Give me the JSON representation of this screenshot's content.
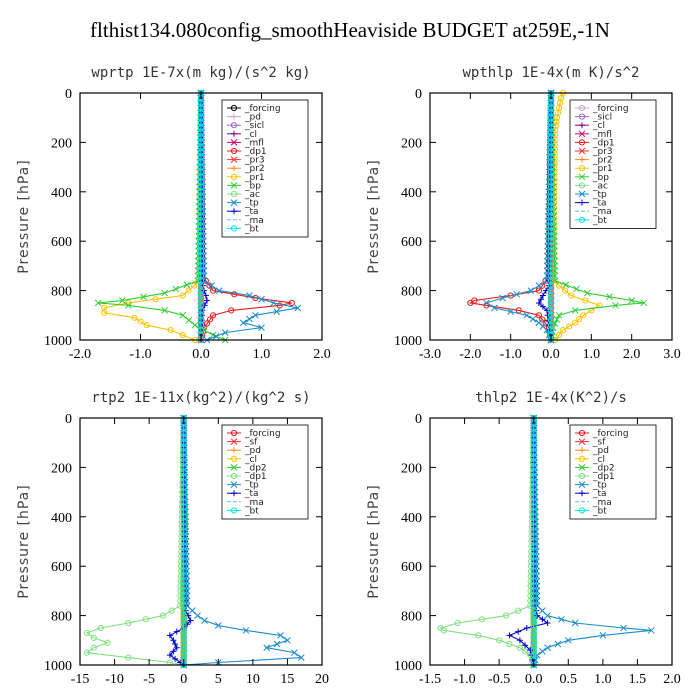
{
  "suptitle": "flthist134.080config_smoothHeaviside  BUDGET at259E,-1N",
  "chart_data": [
    {
      "type": "line",
      "title": "wprtp  1E-7x(m kg)/(s^2 kg)",
      "ylabel": "Pressure [hPa]",
      "xlim": [
        -2.0,
        2.0
      ],
      "ylim": [
        1000,
        0
      ],
      "xticks": [
        "-2.0",
        "-1.0",
        "0.0",
        "1.0",
        "2.0"
      ],
      "yticks": [
        "0",
        "200",
        "400",
        "600",
        "800",
        "1000"
      ],
      "series": [
        {
          "name": "_forcing",
          "color": "#000000",
          "marker": "o",
          "p": [
            0,
            500,
            800,
            1000
          ],
          "x": [
            0,
            0,
            0,
            0
          ]
        },
        {
          "name": "_pd",
          "color": "#c9a0dc",
          "marker": "+",
          "p": [
            0,
            1000
          ],
          "x": [
            0,
            0
          ]
        },
        {
          "name": "_sicl",
          "color": "#9966cc",
          "marker": "o",
          "p": [
            0,
            1000
          ],
          "x": [
            0,
            0
          ]
        },
        {
          "name": "_cl",
          "color": "#800080",
          "marker": "+",
          "p": [
            0,
            1000
          ],
          "x": [
            0,
            0
          ]
        },
        {
          "name": "_mfl",
          "color": "#cc0066",
          "marker": "x",
          "p": [
            0,
            1000
          ],
          "x": [
            0,
            0
          ]
        },
        {
          "name": "_dp1",
          "color": "#e81a1a",
          "marker": "o",
          "p": [
            0,
            740,
            800,
            830,
            850,
            860,
            880,
            900,
            950,
            1000
          ],
          "x": [
            0,
            0.02,
            0.2,
            0.9,
            1.5,
            1.3,
            0.5,
            0.2,
            0.05,
            0
          ]
        },
        {
          "name": "_pr3",
          "color": "#ff3333",
          "marker": "x",
          "p": [
            0,
            1000
          ],
          "x": [
            0,
            0
          ]
        },
        {
          "name": "_pr2",
          "color": "#ff8c1a",
          "marker": "+",
          "p": [
            0,
            1000
          ],
          "x": [
            0,
            0
          ]
        },
        {
          "name": "_pr1",
          "color": "#f5c400",
          "marker": "o",
          "p": [
            0,
            760,
            820,
            850,
            870,
            890,
            910,
            940,
            960,
            1000
          ],
          "x": [
            0,
            -0.02,
            -0.3,
            -1.2,
            -1.6,
            -1.6,
            -1.1,
            -0.9,
            -0.5,
            -0.1
          ]
        },
        {
          "name": "_bp",
          "color": "#33cc33",
          "marker": "x",
          "p": [
            0,
            760,
            810,
            840,
            850,
            860,
            880,
            900,
            940,
            980,
            1000
          ],
          "x": [
            0,
            -0.05,
            -0.6,
            -1.3,
            -1.7,
            -1.2,
            -0.6,
            -0.3,
            -0.1,
            0.2,
            0.4
          ]
        },
        {
          "name": "_ac",
          "color": "#80e080",
          "marker": "o",
          "p": [
            0,
            1000
          ],
          "x": [
            0,
            0
          ]
        },
        {
          "name": "_tp",
          "color": "#1a8ccc",
          "marker": "x",
          "p": [
            0,
            760,
            800,
            820,
            850,
            870,
            900,
            930,
            950,
            970,
            1000
          ],
          "x": [
            0,
            0.05,
            0.3,
            0.8,
            1.2,
            1.6,
            0.9,
            0.7,
            1.0,
            0.4,
            0.1
          ]
        },
        {
          "name": "_ta",
          "color": "#0000cc",
          "marker": "+",
          "p": [
            0,
            760,
            800,
            820,
            840,
            860,
            880,
            1000
          ],
          "x": [
            0,
            0.02,
            0.05,
            0.08,
            0.1,
            0.06,
            0.02,
            0
          ]
        },
        {
          "name": "_ma",
          "color": "#66b3ff",
          "marker": "none",
          "p": [
            0,
            1000
          ],
          "x": [
            0,
            0
          ]
        },
        {
          "name": "_bt",
          "color": "#00e5e5",
          "marker": "o",
          "p": [
            0,
            1000
          ],
          "x": [
            0,
            0
          ]
        }
      ]
    },
    {
      "type": "line",
      "title": "wpthlp  1E-4x(m K)/s^2",
      "ylabel": "Pressure [hPa]",
      "xlim": [
        -3.0,
        3.0
      ],
      "ylim": [
        1000,
        0
      ],
      "xticks": [
        "-3.0",
        "-2.0",
        "-1.0",
        "0.0",
        "1.0",
        "2.0",
        "3.0"
      ],
      "yticks": [
        "0",
        "200",
        "400",
        "600",
        "800",
        "1000"
      ],
      "series": [
        {
          "name": "_forcing",
          "color": "#c9a0dc",
          "marker": "o",
          "p": [
            0,
            1000
          ],
          "x": [
            0,
            0
          ]
        },
        {
          "name": "_sicl",
          "color": "#9966cc",
          "marker": "o",
          "p": [
            0,
            1000
          ],
          "x": [
            0,
            0
          ]
        },
        {
          "name": "_cl",
          "color": "#800080",
          "marker": "+",
          "p": [
            0,
            1000
          ],
          "x": [
            0,
            0
          ]
        },
        {
          "name": "_mfl",
          "color": "#cc0066",
          "marker": "x",
          "p": [
            0,
            1000
          ],
          "x": [
            0,
            0
          ]
        },
        {
          "name": "_dp1",
          "color": "#e81a1a",
          "marker": "o",
          "p": [
            0,
            740,
            800,
            820,
            840,
            850,
            860,
            880,
            900,
            950,
            1000
          ],
          "x": [
            0,
            -0.05,
            -0.3,
            -1.0,
            -1.9,
            -2.0,
            -1.6,
            -0.8,
            -0.3,
            -0.05,
            0
          ]
        },
        {
          "name": "_pr3",
          "color": "#ff3333",
          "marker": "x",
          "p": [
            0,
            1000
          ],
          "x": [
            0,
            0
          ]
        },
        {
          "name": "_pr2",
          "color": "#ff8c1a",
          "marker": "+",
          "p": [
            0,
            1000
          ],
          "x": [
            0,
            0
          ]
        },
        {
          "name": "_pr1",
          "color": "#f5c400",
          "marker": "o",
          "p": [
            0,
            20,
            60,
            100,
            150,
            760,
            820,
            860,
            900,
            930,
            960,
            1000
          ],
          "x": [
            0.3,
            0.25,
            0.2,
            0.15,
            0.1,
            0.05,
            0.5,
            1.2,
            0.8,
            0.6,
            0.3,
            0.1
          ]
        },
        {
          "name": "_bp",
          "color": "#33cc33",
          "marker": "x",
          "p": [
            0,
            760,
            810,
            840,
            850,
            860,
            880,
            900,
            950,
            1000
          ],
          "x": [
            0,
            0.1,
            0.9,
            2.0,
            2.3,
            1.6,
            0.6,
            0.2,
            0.05,
            0
          ]
        },
        {
          "name": "_ac",
          "color": "#80e080",
          "marker": "o",
          "p": [
            0,
            1000
          ],
          "x": [
            0,
            0
          ]
        },
        {
          "name": "_tp",
          "color": "#1a8ccc",
          "marker": "x",
          "p": [
            0,
            760,
            800,
            830,
            850,
            870,
            900,
            930,
            960,
            1000
          ],
          "x": [
            0,
            -0.1,
            -0.5,
            -1.2,
            -1.6,
            -1.4,
            -0.6,
            -0.3,
            -0.1,
            0
          ]
        },
        {
          "name": "_ta",
          "color": "#0000cc",
          "marker": "+",
          "p": [
            0,
            780,
            820,
            850,
            880,
            1000
          ],
          "x": [
            0,
            -0.05,
            -0.2,
            -0.3,
            -0.1,
            0
          ]
        },
        {
          "name": "_ma",
          "color": "#66b3ff",
          "marker": "none",
          "p": [
            0,
            1000
          ],
          "x": [
            0,
            0
          ]
        },
        {
          "name": "_bt",
          "color": "#00e5e5",
          "marker": "o",
          "p": [
            0,
            1000
          ],
          "x": [
            0,
            0
          ]
        }
      ]
    },
    {
      "type": "line",
      "title": "rtp2  1E-11x(kg^2)/(kg^2 s)",
      "ylabel": "Pressure [hPa]",
      "xlim": [
        -15,
        20
      ],
      "ylim": [
        1000,
        0
      ],
      "xticks": [
        "-15",
        "-10",
        "-5",
        "0",
        "5",
        "10",
        "15",
        "20"
      ],
      "yticks": [
        "0",
        "200",
        "400",
        "600",
        "800",
        "1000"
      ],
      "series": [
        {
          "name": "_forcing",
          "color": "#e81a1a",
          "marker": "o",
          "p": [
            0,
            1000
          ],
          "x": [
            0,
            0
          ]
        },
        {
          "name": "_sf",
          "color": "#ff3333",
          "marker": "x",
          "p": [
            0,
            1000
          ],
          "x": [
            0,
            0
          ]
        },
        {
          "name": "_pd",
          "color": "#ff8c1a",
          "marker": "+",
          "p": [
            0,
            1000
          ],
          "x": [
            0,
            0
          ]
        },
        {
          "name": "_cl",
          "color": "#f5c400",
          "marker": "o",
          "p": [
            0,
            1000
          ],
          "x": [
            0,
            0
          ]
        },
        {
          "name": "_dp2",
          "color": "#33cc33",
          "marker": "x",
          "p": [
            0,
            1000
          ],
          "x": [
            0,
            0
          ]
        },
        {
          "name": "_dp1",
          "color": "#80e080",
          "marker": "o",
          "p": [
            0,
            760,
            800,
            830,
            850,
            870,
            890,
            910,
            930,
            950,
            970,
            990,
            1000
          ],
          "x": [
            0,
            -0.5,
            -3,
            -8,
            -12,
            -14,
            -13,
            -11,
            -13,
            -14,
            -8,
            -2,
            0
          ]
        },
        {
          "name": "_tp",
          "color": "#1a8ccc",
          "marker": "x",
          "p": [
            0,
            760,
            800,
            820,
            840,
            860,
            880,
            900,
            930,
            950,
            970,
            990,
            1000
          ],
          "x": [
            0,
            0.5,
            2,
            3,
            5,
            9,
            14,
            15,
            12,
            16,
            17,
            5,
            0
          ]
        },
        {
          "name": "_ta",
          "color": "#0000cc",
          "marker": "+",
          "p": [
            0,
            780,
            820,
            850,
            880,
            900,
            930,
            960,
            990,
            1000
          ],
          "x": [
            0,
            0.3,
            1,
            0,
            -2,
            -1.5,
            -1,
            -2,
            -0.5,
            0
          ]
        },
        {
          "name": "_ma",
          "color": "#66b3ff",
          "marker": "none",
          "p": [
            0,
            1000
          ],
          "x": [
            0,
            0
          ]
        },
        {
          "name": "_bt",
          "color": "#00e5e5",
          "marker": "o",
          "p": [
            0,
            1000
          ],
          "x": [
            0,
            0
          ]
        }
      ]
    },
    {
      "type": "line",
      "title": "thlp2  1E-4x(K^2)/s",
      "ylabel": "Pressure [hPa]",
      "xlim": [
        -1.5,
        2.0
      ],
      "ylim": [
        1000,
        0
      ],
      "xticks": [
        "-1.5",
        "-1.0",
        "-0.5",
        "0.0",
        "0.5",
        "1.0",
        "1.5",
        "2.0"
      ],
      "yticks": [
        "0",
        "200",
        "400",
        "600",
        "800",
        "1000"
      ],
      "series": [
        {
          "name": "_forcing",
          "color": "#e81a1a",
          "marker": "o",
          "p": [
            0,
            1000
          ],
          "x": [
            0,
            0
          ]
        },
        {
          "name": "_sf",
          "color": "#ff3333",
          "marker": "x",
          "p": [
            0,
            1000
          ],
          "x": [
            0,
            0
          ]
        },
        {
          "name": "_pd",
          "color": "#ff8c1a",
          "marker": "+",
          "p": [
            0,
            1000
          ],
          "x": [
            0,
            0
          ]
        },
        {
          "name": "_cl",
          "color": "#f5c400",
          "marker": "o",
          "p": [
            0,
            1000
          ],
          "x": [
            0,
            0
          ]
        },
        {
          "name": "_dp2",
          "color": "#33cc33",
          "marker": "x",
          "p": [
            0,
            1000
          ],
          "x": [
            0,
            0
          ]
        },
        {
          "name": "_dp1",
          "color": "#80e080",
          "marker": "o",
          "p": [
            0,
            760,
            800,
            830,
            850,
            860,
            880,
            900,
            930,
            960,
            1000
          ],
          "x": [
            0,
            -0.05,
            -0.4,
            -1.1,
            -1.35,
            -1.3,
            -0.8,
            -0.5,
            -0.2,
            -0.05,
            0
          ]
        },
        {
          "name": "_tp",
          "color": "#1a8ccc",
          "marker": "x",
          "p": [
            0,
            760,
            800,
            830,
            850,
            860,
            880,
            900,
            930,
            960,
            1000
          ],
          "x": [
            0,
            0.05,
            0.2,
            0.6,
            1.3,
            1.7,
            1.0,
            0.5,
            0.2,
            0.05,
            0
          ]
        },
        {
          "name": "_ta",
          "color": "#0000cc",
          "marker": "+",
          "p": [
            0,
            760,
            800,
            830,
            850,
            880,
            900,
            940,
            1000
          ],
          "x": [
            0,
            0.02,
            0.05,
            0.2,
            -0.1,
            -0.35,
            -0.2,
            -0.05,
            0
          ]
        },
        {
          "name": "_ma",
          "color": "#66b3ff",
          "marker": "none",
          "p": [
            0,
            1000
          ],
          "x": [
            0,
            0
          ]
        },
        {
          "name": "_bt",
          "color": "#00e5e5",
          "marker": "o",
          "p": [
            0,
            1000
          ],
          "x": [
            0,
            0
          ]
        }
      ]
    }
  ]
}
